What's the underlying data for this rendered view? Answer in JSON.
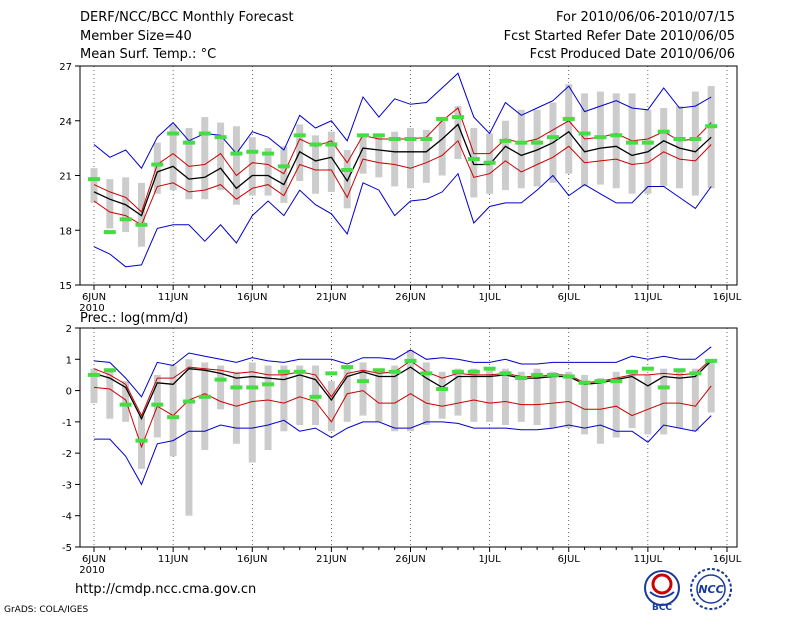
{
  "header": {
    "title": "DERF/NCC/BCC Monthly Forecast",
    "member_size": "Member Size=40",
    "variable": "Mean Surf. Temp.: °C",
    "period": "For 2010/06/06-2010/07/15",
    "refer_date": "Fcst Started Refer Date 2010/06/05",
    "produced_date": "Fcst Produced Date 2010/06/06"
  },
  "footer": {
    "url": "http://cmdp.ncc.cma.gov.cn",
    "credit": "GrADS: COLA/IGES",
    "logo_bcc_text": "BCC",
    "logo_ncc_text": "NCC"
  },
  "colors": {
    "envelope": "#0000cc",
    "spread": "#cc0000",
    "mean": "#000000",
    "bar": "#cccccc",
    "obs": "#44dd44"
  },
  "chart_data": [
    {
      "type": "line",
      "title": "Mean Surf. Temp.: °C",
      "x_tick_labels": [
        "6JUN",
        "11JUN",
        "16JUN",
        "21JUN",
        "26JUN",
        "1JUL",
        "6JUL",
        "11JUL",
        "16JUL"
      ],
      "x_tick_days": [
        0,
        5,
        10,
        15,
        20,
        25,
        30,
        35,
        40
      ],
      "x_sublabel": "2010",
      "ylim": [
        15,
        27
      ],
      "y_ticks": [
        15,
        18,
        21,
        24,
        27
      ],
      "days": [
        0,
        1,
        2,
        3,
        4,
        5,
        6,
        7,
        8,
        9,
        10,
        11,
        12,
        13,
        14,
        15,
        16,
        17,
        18,
        19,
        20,
        21,
        22,
        23,
        24,
        25,
        26,
        27,
        28,
        29,
        30,
        31,
        32,
        33,
        34,
        35,
        36,
        37,
        38,
        39
      ],
      "series": [
        {
          "name": "max",
          "values": [
            22.7,
            22.0,
            22.4,
            21.4,
            23.1,
            23.9,
            22.9,
            23.3,
            23.2,
            22.2,
            23.4,
            23.1,
            22.4,
            24.3,
            23.6,
            24.0,
            22.9,
            25.3,
            24.2,
            25.2,
            24.9,
            25.0,
            25.8,
            26.6,
            24.2,
            23.3,
            25.0,
            24.3,
            24.7,
            25.1,
            25.9,
            24.5,
            24.8,
            25.1,
            24.7,
            24.6,
            25.8,
            24.7,
            24.8,
            25.3
          ]
        },
        {
          "name": "upper",
          "values": [
            20.5,
            20.1,
            19.8,
            19.0,
            21.6,
            22.2,
            21.5,
            21.6,
            22.2,
            21.0,
            21.7,
            21.6,
            21.1,
            23.0,
            22.6,
            22.9,
            21.7,
            23.2,
            23.0,
            23.0,
            23.0,
            23.1,
            24.0,
            24.7,
            22.2,
            22.2,
            23.0,
            22.8,
            23.0,
            23.5,
            24.0,
            23.0,
            23.1,
            23.3,
            22.9,
            23.0,
            23.4,
            22.9,
            23.0,
            23.9
          ]
        },
        {
          "name": "mean",
          "values": [
            20.1,
            19.7,
            19.4,
            18.8,
            21.2,
            21.5,
            20.8,
            20.9,
            21.4,
            20.3,
            21.0,
            21.0,
            20.5,
            22.3,
            21.8,
            22.0,
            20.7,
            22.5,
            22.4,
            22.3,
            22.3,
            22.3,
            23.0,
            23.8,
            21.6,
            21.6,
            22.6,
            22.1,
            22.4,
            22.8,
            23.4,
            22.3,
            22.5,
            22.6,
            22.1,
            22.3,
            22.9,
            22.5,
            22.3,
            23.1
          ]
        },
        {
          "name": "lower",
          "values": [
            19.6,
            19.0,
            18.8,
            18.3,
            20.4,
            20.6,
            20.1,
            20.2,
            20.5,
            19.7,
            20.3,
            20.5,
            19.9,
            21.6,
            21.3,
            21.3,
            19.8,
            21.9,
            21.7,
            21.6,
            21.4,
            21.7,
            22.1,
            22.9,
            20.9,
            21.1,
            21.8,
            21.2,
            21.6,
            22.0,
            22.6,
            21.7,
            21.8,
            21.9,
            21.6,
            21.7,
            22.3,
            21.9,
            21.8,
            22.7
          ]
        },
        {
          "name": "min",
          "values": [
            17.1,
            16.7,
            16.0,
            16.1,
            18.1,
            18.3,
            18.3,
            17.4,
            18.3,
            17.3,
            18.8,
            19.6,
            18.8,
            20.2,
            19.4,
            18.9,
            17.8,
            20.6,
            20.2,
            18.8,
            19.6,
            19.7,
            20.1,
            21.1,
            18.4,
            19.3,
            19.5,
            19.5,
            20.2,
            21.0,
            19.9,
            20.5,
            20.0,
            19.5,
            19.5,
            20.4,
            20.4,
            19.8,
            19.2,
            20.4
          ]
        }
      ],
      "bars": {
        "name": "ensemble range",
        "low": [
          19.5,
          18.1,
          17.9,
          17.1,
          20.0,
          20.2,
          19.7,
          19.7,
          20.2,
          19.4,
          19.9,
          19.9,
          19.5,
          20.7,
          20.0,
          20.1,
          19.2,
          21.1,
          20.9,
          20.4,
          20.3,
          20.6,
          21.0,
          21.9,
          19.8,
          20.0,
          20.2,
          20.3,
          20.4,
          20.6,
          21.1,
          20.4,
          20.5,
          20.3,
          20.0,
          20.0,
          20.4,
          20.3,
          19.9,
          20.3
        ],
        "high": [
          21.4,
          20.8,
          20.9,
          20.6,
          22.8,
          23.8,
          23.6,
          24.2,
          23.9,
          23.7,
          23.1,
          22.5,
          22.6,
          23.8,
          23.2,
          23.4,
          22.4,
          23.2,
          23.2,
          23.4,
          23.6,
          23.5,
          24.2,
          24.8,
          23.6,
          23.3,
          24.0,
          24.6,
          24.6,
          25.0,
          26.0,
          25.5,
          25.6,
          25.5,
          25.5,
          24.6,
          24.7,
          24.8,
          25.6,
          25.9
        ]
      },
      "markers": {
        "name": "observed",
        "values": [
          20.8,
          17.9,
          18.6,
          18.3,
          21.6,
          23.3,
          22.8,
          23.3,
          23.1,
          22.2,
          22.3,
          22.2,
          21.5,
          23.2,
          22.7,
          22.7,
          21.3,
          23.2,
          23.2,
          23.0,
          23.0,
          23.0,
          24.1,
          24.2,
          21.9,
          21.7,
          22.9,
          22.8,
          22.8,
          23.1,
          24.1,
          23.3,
          23.1,
          23.2,
          22.8,
          22.8,
          23.4,
          23.0,
          23.0,
          23.7
        ]
      }
    },
    {
      "type": "line",
      "title": "Prec.: log(mm/d)",
      "x_tick_labels": [
        "6JUN",
        "11JUN",
        "16JUN",
        "21JUN",
        "26JUN",
        "1JUL",
        "6JUL",
        "11JUL",
        "16JUL"
      ],
      "x_tick_days": [
        0,
        5,
        10,
        15,
        20,
        25,
        30,
        35,
        40
      ],
      "x_sublabel": "2010",
      "ylim": [
        -5,
        2
      ],
      "y_ticks": [
        -5,
        -4,
        -3,
        -2,
        -1,
        0,
        1,
        2
      ],
      "days": [
        0,
        1,
        2,
        3,
        4,
        5,
        6,
        7,
        8,
        9,
        10,
        11,
        12,
        13,
        14,
        15,
        16,
        17,
        18,
        19,
        20,
        21,
        22,
        23,
        24,
        25,
        26,
        27,
        28,
        29,
        30,
        31,
        32,
        33,
        34,
        35,
        36,
        37,
        38,
        39
      ],
      "series": [
        {
          "name": "max",
          "values": [
            0.95,
            0.9,
            0.4,
            -0.2,
            0.9,
            0.8,
            1.2,
            1.1,
            1.0,
            0.9,
            1.05,
            0.95,
            0.9,
            1.0,
            1.0,
            1.0,
            0.85,
            1.05,
            1.05,
            1.0,
            1.3,
            1.0,
            1.05,
            1.0,
            0.9,
            0.9,
            1.0,
            0.85,
            0.85,
            0.9,
            0.9,
            0.9,
            0.9,
            0.9,
            1.1,
            1.0,
            1.1,
            1.0,
            1.0,
            1.4
          ]
        },
        {
          "name": "upper",
          "values": [
            0.7,
            0.5,
            0.2,
            -0.8,
            0.4,
            0.4,
            0.75,
            0.7,
            0.65,
            0.55,
            0.6,
            0.5,
            0.5,
            0.6,
            0.5,
            -0.2,
            0.55,
            0.65,
            0.55,
            0.6,
            0.95,
            0.6,
            0.4,
            0.55,
            0.5,
            0.5,
            0.55,
            0.45,
            0.45,
            0.5,
            0.5,
            0.25,
            0.3,
            0.4,
            0.5,
            0.5,
            0.55,
            0.5,
            0.55,
            1.0
          ]
        },
        {
          "name": "mean",
          "values": [
            0.55,
            0.4,
            0.1,
            -0.9,
            0.25,
            0.2,
            0.7,
            0.65,
            0.55,
            0.4,
            0.45,
            0.4,
            0.35,
            0.5,
            0.35,
            -0.3,
            0.45,
            0.6,
            0.45,
            0.45,
            0.75,
            0.4,
            0.1,
            0.45,
            0.45,
            0.45,
            0.5,
            0.4,
            0.4,
            0.45,
            0.45,
            0.2,
            0.25,
            0.35,
            0.45,
            0.15,
            0.45,
            0.4,
            0.45,
            0.95
          ]
        },
        {
          "name": "lower",
          "values": [
            0.1,
            0.05,
            -0.3,
            -1.8,
            -0.5,
            -0.8,
            -0.3,
            -0.1,
            -0.35,
            -0.5,
            -0.35,
            -0.3,
            -0.4,
            -0.2,
            -0.35,
            -1.0,
            -0.1,
            0.0,
            -0.4,
            -0.4,
            -0.1,
            -0.4,
            -0.5,
            -0.4,
            -0.3,
            -0.4,
            -0.35,
            -0.45,
            -0.45,
            -0.4,
            -0.35,
            -0.6,
            -0.6,
            -0.5,
            -0.8,
            -0.6,
            -0.4,
            -0.4,
            -0.5,
            0.15
          ]
        },
        {
          "name": "min",
          "values": [
            -1.55,
            -1.55,
            -2.1,
            -3.0,
            -1.7,
            -1.6,
            -1.3,
            -1.3,
            -1.1,
            -1.2,
            -1.2,
            -1.1,
            -0.95,
            -1.3,
            -1.2,
            -1.5,
            -1.2,
            -1.0,
            -1.0,
            -1.2,
            -1.2,
            -1.0,
            -1.0,
            -1.05,
            -1.2,
            -1.2,
            -1.2,
            -1.25,
            -1.25,
            -1.2,
            -1.1,
            -1.2,
            -1.1,
            -1.3,
            -1.3,
            -1.65,
            -1.1,
            -1.2,
            -1.3,
            -0.8
          ]
        }
      ],
      "bars": {
        "name": "ensemble range",
        "low": [
          -0.4,
          -0.9,
          -1.0,
          -2.5,
          -1.5,
          -2.1,
          -4.0,
          -1.9,
          -0.6,
          -1.7,
          -2.3,
          -1.9,
          -1.3,
          -1.1,
          -1.1,
          -1.3,
          -1.0,
          -0.8,
          -1.0,
          -1.3,
          -1.3,
          -1.1,
          -0.9,
          -0.8,
          -1.0,
          -1.0,
          -1.1,
          -1.0,
          -1.1,
          -1.2,
          -1.2,
          -1.4,
          -1.7,
          -1.5,
          -1.2,
          -1.4,
          -1.4,
          -1.2,
          -1.3,
          -0.7
        ],
        "high": [
          0.7,
          0.7,
          0.3,
          -0.8,
          0.5,
          0.8,
          1.0,
          0.9,
          0.8,
          0.6,
          0.9,
          0.8,
          0.8,
          0.8,
          0.8,
          0.3,
          0.7,
          0.9,
          0.7,
          0.8,
          1.3,
          0.9,
          0.6,
          0.7,
          0.7,
          0.7,
          0.7,
          0.6,
          0.7,
          0.6,
          0.6,
          0.5,
          0.4,
          0.6,
          0.6,
          0.5,
          0.7,
          0.6,
          0.7,
          1.0
        ]
      },
      "markers": {
        "name": "observed",
        "values": [
          0.5,
          0.65,
          -0.45,
          -1.6,
          -0.45,
          -0.85,
          -0.35,
          -0.2,
          0.35,
          0.1,
          0.1,
          0.2,
          0.6,
          0.6,
          -0.2,
          0.55,
          0.75,
          0.3,
          0.65,
          0.6,
          0.95,
          0.55,
          0.05,
          0.6,
          0.6,
          0.7,
          0.55,
          0.4,
          0.5,
          0.5,
          0.45,
          0.25,
          0.3,
          0.3,
          0.6,
          0.7,
          0.1,
          0.65,
          0.55,
          0.95
        ]
      }
    }
  ]
}
